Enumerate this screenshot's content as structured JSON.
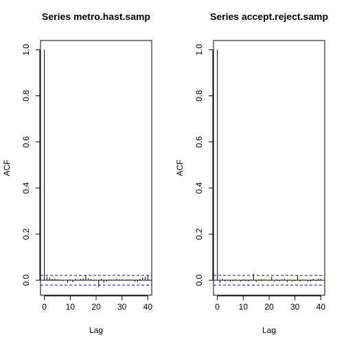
{
  "chart_data": [
    {
      "type": "bar",
      "title": "Series  metro.hast.samp",
      "xlabel": "Lag",
      "ylabel": "ACF",
      "xlim": [
        -1.5,
        41.5
      ],
      "ylim": [
        -0.065,
        1.04
      ],
      "xticks": [
        0,
        10,
        20,
        30,
        40
      ],
      "yticks": [
        0.0,
        0.2,
        0.4,
        0.6,
        0.8,
        1.0
      ],
      "ytick_labels": [
        "0.0",
        "0.2",
        "0.4",
        "0.6",
        "0.8",
        "1.0"
      ],
      "ci": 0.021,
      "ci_color": "#0000ff",
      "lag": [
        0,
        1,
        2,
        3,
        4,
        5,
        6,
        7,
        8,
        9,
        10,
        11,
        12,
        13,
        14,
        15,
        16,
        17,
        18,
        19,
        20,
        21,
        22,
        23,
        24,
        25,
        26,
        27,
        28,
        29,
        30,
        31,
        32,
        33,
        34,
        35,
        36,
        37,
        38,
        39,
        40
      ],
      "acf": [
        1.0,
        0.015,
        0.012,
        0.006,
        0.008,
        0.004,
        0.003,
        -0.003,
        0.002,
        -0.012,
        0.004,
        -0.008,
        0.006,
        0.003,
        0.006,
        0.008,
        0.023,
        0.009,
        0.004,
        -0.004,
        0.002,
        -0.03,
        0.006,
        -0.012,
        -0.006,
        0.004,
        0.003,
        0.003,
        0.006,
        0.004,
        0.004,
        0.002,
        0.003,
        0.004,
        0.003,
        -0.006,
        -0.008,
        0.006,
        0.012,
        0.014,
        0.022
      ]
    },
    {
      "type": "bar",
      "title": "Series  accept.reject.samp",
      "xlabel": "Lag",
      "ylabel": "ACF",
      "xlim": [
        -1.5,
        41.5
      ],
      "ylim": [
        -0.065,
        1.04
      ],
      "xticks": [
        0,
        10,
        20,
        30,
        40
      ],
      "yticks": [
        0.0,
        0.2,
        0.4,
        0.6,
        0.8,
        1.0
      ],
      "ytick_labels": [
        "0.0",
        "0.2",
        "0.4",
        "0.6",
        "0.8",
        "1.0"
      ],
      "ci": 0.021,
      "ci_color": "#0000ff",
      "lag": [
        0,
        1,
        2,
        3,
        4,
        5,
        6,
        7,
        8,
        9,
        10,
        11,
        12,
        13,
        14,
        15,
        16,
        17,
        18,
        19,
        20,
        21,
        22,
        23,
        24,
        25,
        26,
        27,
        28,
        29,
        30,
        31,
        32,
        33,
        34,
        35,
        36,
        37,
        38,
        39,
        40
      ],
      "acf": [
        1.0,
        -0.012,
        0.006,
        -0.006,
        -0.003,
        -0.006,
        -0.004,
        0.003,
        -0.002,
        -0.006,
        0.004,
        -0.004,
        -0.006,
        0.004,
        0.028,
        -0.008,
        0.003,
        0.004,
        0.004,
        0.002,
        -0.003,
        0.016,
        -0.006,
        0.004,
        -0.005,
        0.004,
        0.005,
        -0.008,
        0.003,
        -0.006,
        -0.004,
        0.022,
        -0.006,
        0.004,
        0.003,
        -0.005,
        -0.006,
        0.006,
        -0.002,
        0.008,
        0.006
      ]
    }
  ]
}
